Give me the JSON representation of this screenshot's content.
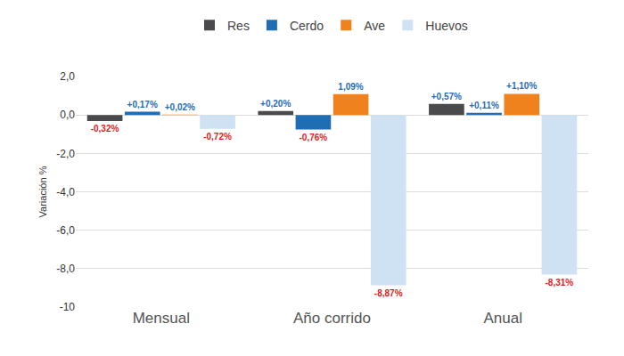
{
  "chart_data": {
    "type": "bar",
    "y_label": "Variación %",
    "categories": [
      "Mensual",
      "Año corrido",
      "Anual"
    ],
    "series": [
      {
        "name": "Res",
        "color": "#4a4a4d",
        "values": [
          -0.32,
          0.2,
          0.57
        ],
        "value_labels": [
          "-0,32%",
          "+0,20%",
          "+0,57%"
        ]
      },
      {
        "name": "Cerdo",
        "color": "#1f6db3",
        "values": [
          0.17,
          -0.76,
          0.11
        ],
        "value_labels": [
          "+0,17%",
          "-0,76%",
          "+0,11%"
        ]
      },
      {
        "name": "Ave",
        "color": "#f0821e",
        "values": [
          0.02,
          1.09,
          1.1
        ],
        "value_labels": [
          "+0,02%",
          "1,09%",
          "+1,10%"
        ]
      },
      {
        "name": "Huevos",
        "color": "#cfe2f3",
        "values": [
          -0.72,
          -8.87,
          -8.31
        ],
        "value_labels": [
          "-0,72%",
          "-8,87%",
          "-8,31%"
        ]
      }
    ],
    "ylim": [
      -10,
      2
    ],
    "yticks": [
      {
        "value": 2,
        "label": "2,0"
      },
      {
        "value": 0,
        "label": "0,0"
      },
      {
        "value": -2,
        "label": "-2,0"
      },
      {
        "value": -4,
        "label": "-4,0"
      },
      {
        "value": -6,
        "label": "-6,0"
      },
      {
        "value": -8,
        "label": "-8,0"
      },
      -10
    ],
    "grid": true,
    "legend": "top",
    "data_labels": true
  }
}
